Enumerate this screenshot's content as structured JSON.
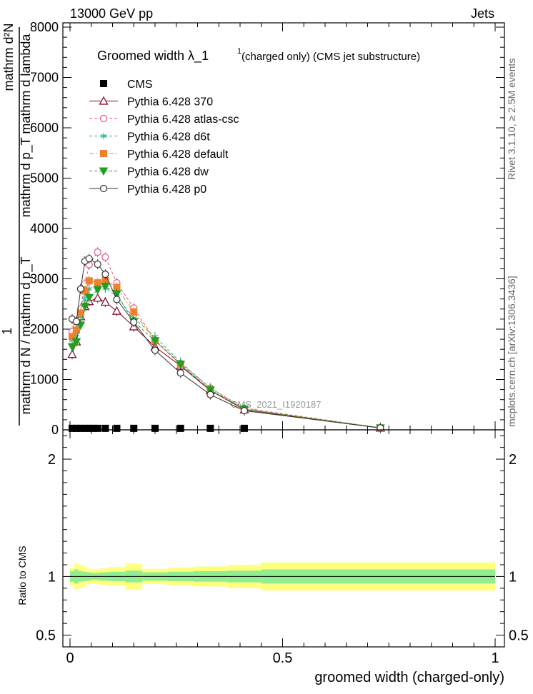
{
  "header": {
    "left": "13000 GeV pp",
    "right": "Jets"
  },
  "side_labels": {
    "rivet": "Rivet 3.1.10, ≥ 2.5M events",
    "mcplots": "mcplots.cern.ch [arXiv:1306.3436]"
  },
  "chart_data": [
    {
      "type": "line",
      "panel": "main",
      "title_main": "Groomed width  λ_1",
      "title_sup": "1",
      "title_rest": " (charged only) (CMS jet substructure)",
      "ylabel_lines": [
        "mathrm d²N",
        "mathrm d p_T mathrm d lambda",
        "1",
        "mathrm d N / mathrm d p_T"
      ],
      "watermark": "CMS_2021_I1920187",
      "xlim": [
        0,
        1
      ],
      "ylim": [
        0,
        8000
      ],
      "ytick_labels": [
        "0",
        "1000",
        "2000",
        "3000",
        "4000",
        "5000",
        "6000",
        "7000",
        "8000"
      ],
      "legend_position": "top-left",
      "series": [
        {
          "name": "CMS",
          "color": "#000000",
          "marker": "square",
          "dash": "none",
          "x": [
            0.005,
            0.015,
            0.025,
            0.035,
            0.045,
            0.055,
            0.065,
            0.083,
            0.11,
            0.15,
            0.2,
            0.26,
            0.33,
            0.41
          ],
          "y": [
            30,
            30,
            30,
            30,
            30,
            30,
            30,
            30,
            30,
            30,
            30,
            30,
            30,
            30
          ]
        },
        {
          "name": "Pythia 6.428 370",
          "color": "#800020",
          "marker": "triangle-open",
          "dash": "none",
          "x": [
            0.005,
            0.015,
            0.025,
            0.035,
            0.045,
            0.065,
            0.083,
            0.11,
            0.15,
            0.2,
            0.26,
            0.33,
            0.41,
            0.73
          ],
          "y": [
            1500,
            1750,
            2250,
            2450,
            2550,
            2620,
            2540,
            2360,
            2050,
            1650,
            1270,
            780,
            400,
            35
          ]
        },
        {
          "name": "Pythia 6.428 atlas-csc",
          "color": "#e05a7a",
          "marker": "circle-open",
          "dash": "4,3",
          "x": [
            0.005,
            0.015,
            0.025,
            0.035,
            0.045,
            0.065,
            0.083,
            0.11,
            0.15,
            0.2,
            0.26,
            0.33,
            0.41,
            0.73
          ],
          "y": [
            1950,
            2050,
            2400,
            2900,
            3280,
            3530,
            3430,
            2920,
            2420,
            1780,
            1320,
            830,
            430,
            40
          ]
        },
        {
          "name": "Pythia 6.428 d6t",
          "color": "#1ab394",
          "marker": "asterisk",
          "dash": "4,3",
          "x": [
            0.005,
            0.015,
            0.025,
            0.035,
            0.045,
            0.065,
            0.083,
            0.11,
            0.15,
            0.2,
            0.26,
            0.33,
            0.41,
            0.73
          ],
          "y": [
            1780,
            1900,
            2250,
            2580,
            2800,
            2880,
            2820,
            2650,
            2220,
            1850,
            1340,
            830,
            410,
            40
          ]
        },
        {
          "name": "Pythia 6.428 default",
          "color": "#f08030",
          "marker": "square",
          "dash": "6,3,2,3",
          "x": [
            0.005,
            0.015,
            0.025,
            0.035,
            0.045,
            0.065,
            0.083,
            0.11,
            0.15,
            0.2,
            0.26,
            0.33,
            0.41,
            0.73
          ],
          "y": [
            1850,
            1980,
            2320,
            2760,
            2960,
            2920,
            2970,
            2830,
            2340,
            1770,
            1300,
            800,
            410,
            38
          ]
        },
        {
          "name": "Pythia 6.428 dw",
          "color": "#20a020",
          "marker": "triangle-down",
          "dash": "4,3",
          "x": [
            0.005,
            0.015,
            0.025,
            0.035,
            0.045,
            0.065,
            0.083,
            0.11,
            0.15,
            0.2,
            0.26,
            0.33,
            0.41,
            0.73
          ],
          "y": [
            1650,
            1750,
            2080,
            2450,
            2630,
            2780,
            2850,
            2700,
            2150,
            1770,
            1300,
            790,
            410,
            38
          ]
        },
        {
          "name": "Pythia 6.428 p0",
          "color": "#333333",
          "marker": "circle-open",
          "dash": "none",
          "x": [
            0.005,
            0.015,
            0.025,
            0.035,
            0.045,
            0.065,
            0.083,
            0.11,
            0.15,
            0.2,
            0.26,
            0.33,
            0.41,
            0.73
          ],
          "y": [
            2200,
            2150,
            2800,
            3350,
            3400,
            3290,
            3090,
            2590,
            2140,
            1580,
            1130,
            700,
            380,
            38
          ]
        }
      ]
    },
    {
      "type": "area",
      "panel": "ratio",
      "ylabel": "Ratio to CMS",
      "xlabel": "groomed width (charged-only)",
      "xlim": [
        0,
        1
      ],
      "ylim": [
        0.4,
        2.25
      ],
      "ytick_labels": [
        "0.5",
        "1",
        "2"
      ],
      "xtick_labels": [
        "0",
        "0.5",
        "1"
      ],
      "bands": {
        "edges": [
          0,
          0.01,
          0.02,
          0.03,
          0.04,
          0.05,
          0.07,
          0.09,
          0.13,
          0.17,
          0.23,
          0.29,
          0.37,
          0.45,
          1.0
        ],
        "inner": [
          0.045,
          0.06,
          0.045,
          0.04,
          0.035,
          0.03,
          0.035,
          0.04,
          0.05,
          0.035,
          0.04,
          0.045,
          0.05,
          0.06
        ],
        "outer": [
          0.07,
          0.11,
          0.1,
          0.085,
          0.065,
          0.06,
          0.07,
          0.08,
          0.11,
          0.065,
          0.075,
          0.085,
          0.1,
          0.12
        ],
        "inner_color": "#90ee90",
        "outer_color": "#ffff80"
      }
    }
  ]
}
